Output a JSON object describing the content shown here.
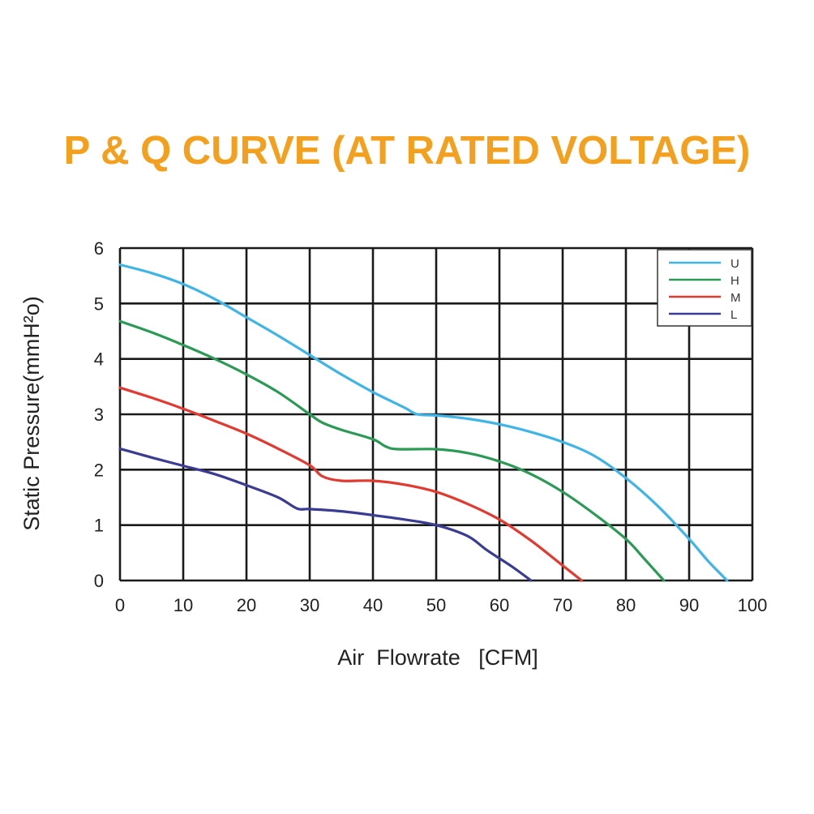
{
  "chart_data": {
    "type": "line",
    "title": "P & Q CURVE (AT RATED VOLTAGE)",
    "xlabel": "Air  Flowrate   [CFM]",
    "ylabel": "Static Pressure(mmH²o)",
    "xlim": [
      0,
      100
    ],
    "ylim": [
      0,
      6
    ],
    "x_ticks": [
      "0",
      "10",
      "20",
      "30",
      "40",
      "50",
      "60",
      "70",
      "80",
      "90",
      "100"
    ],
    "y_ticks": [
      "0",
      "1",
      "2",
      "3",
      "4",
      "5",
      "6"
    ],
    "grid": true,
    "legend_position": "top-right",
    "series": [
      {
        "name": "U",
        "color": "#3fb4e6",
        "x": [
          0,
          5,
          10,
          15,
          20,
          25,
          30,
          35,
          40,
          45,
          47,
          50,
          55,
          60,
          65,
          70,
          75,
          80,
          85,
          90,
          93,
          96
        ],
        "y": [
          5.7,
          5.55,
          5.35,
          5.08,
          4.75,
          4.42,
          4.07,
          3.72,
          3.4,
          3.12,
          3.0,
          2.98,
          2.92,
          2.82,
          2.68,
          2.5,
          2.25,
          1.85,
          1.35,
          0.75,
          0.35,
          0
        ]
      },
      {
        "name": "H",
        "color": "#2a9a55",
        "x": [
          0,
          5,
          10,
          15,
          20,
          25,
          30,
          32,
          35,
          40,
          42,
          44,
          50,
          55,
          60,
          65,
          70,
          75,
          80,
          83,
          86
        ],
        "y": [
          4.68,
          4.48,
          4.25,
          4.0,
          3.72,
          3.4,
          3.0,
          2.85,
          2.72,
          2.55,
          2.42,
          2.37,
          2.37,
          2.3,
          2.15,
          1.92,
          1.6,
          1.2,
          0.75,
          0.38,
          0
        ]
      },
      {
        "name": "M",
        "color": "#e23a30",
        "x": [
          0,
          5,
          10,
          15,
          20,
          25,
          30,
          32,
          35,
          40,
          45,
          50,
          55,
          60,
          65,
          70,
          73
        ],
        "y": [
          3.48,
          3.3,
          3.1,
          2.88,
          2.65,
          2.38,
          2.08,
          1.88,
          1.8,
          1.8,
          1.73,
          1.6,
          1.38,
          1.1,
          0.72,
          0.27,
          0
        ]
      },
      {
        "name": "L",
        "color": "#3a3c94",
        "x": [
          0,
          5,
          10,
          15,
          20,
          25,
          28,
          30,
          35,
          40,
          45,
          50,
          55,
          58,
          62,
          65
        ],
        "y": [
          2.38,
          2.22,
          2.07,
          1.92,
          1.72,
          1.5,
          1.3,
          1.29,
          1.25,
          1.18,
          1.1,
          1.0,
          0.8,
          0.55,
          0.25,
          0
        ]
      }
    ]
  }
}
